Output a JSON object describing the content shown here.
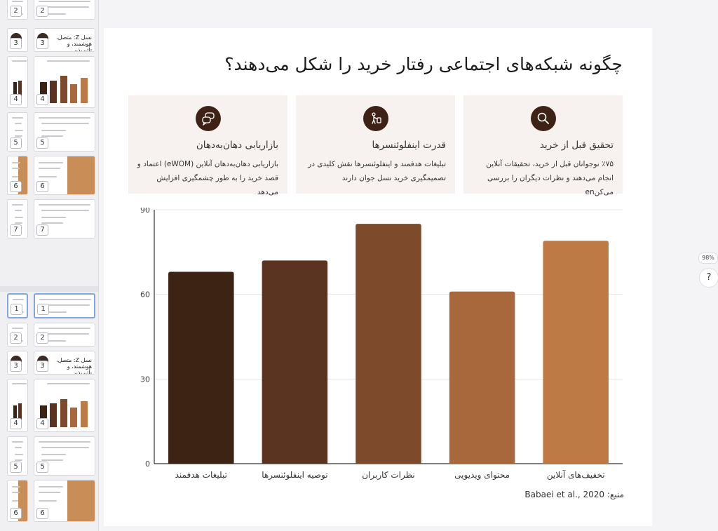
{
  "slide": {
    "title": "چگونه شبکه‌های اجتماعی رفتار خرید را شکل می‌دهند؟",
    "cards": [
      {
        "icon": "search-icon",
        "title": "تحقیق قبل از خرید",
        "text": "٪۷۵ نوجوانان قبل از خرید، تحقیقات آنلاین انجام می‌دهند و نظرات دیگران را بررسی می‌کنen"
      },
      {
        "icon": "influencer-icon",
        "title": "قدرت اینفلوئنسرها",
        "text": "تبلیغات هدفمند و اینفلوئنسرها نقش کلیدی در تصمیمگیری خرید نسل جوان دارند"
      },
      {
        "icon": "chat-bubbles-icon",
        "title": "بازاریابی دهان‌به‌دهان",
        "text": "بازاریابی دهان‌به‌دهان آنلاین (eWOM) اعتماد و قصد خرید را به طور چشمگیری افزایش می‌دهد"
      }
    ],
    "source": "منبع: Babaei et al., 2020"
  },
  "chart_data": {
    "type": "bar",
    "categories": [
      "تبلیغات هدفمند",
      "توصیه اینفلوئنسرها",
      "نظرات کاربران",
      "محتوای ویدیویی",
      "تخفیف‌های آنلاین"
    ],
    "values": [
      68,
      72,
      85,
      61,
      79
    ],
    "colors": [
      "#3d2314",
      "#5a3420",
      "#7d4a2b",
      "#a8683c",
      "#bd7a44"
    ],
    "ylim": [
      0,
      90
    ],
    "yticks": [
      0,
      30,
      60,
      90
    ],
    "grid": true,
    "xlabel": "",
    "ylabel": ""
  },
  "thumbs": {
    "labels": [
      "2",
      "3",
      "4",
      "5",
      "6",
      "7",
      "1",
      "2",
      "3",
      "4",
      "5",
      "6"
    ],
    "gen_z_title": "نسل Z: متصل، هوشمند، و تأثیرپذیر"
  },
  "ui": {
    "zoom": "98%",
    "help": "?"
  }
}
